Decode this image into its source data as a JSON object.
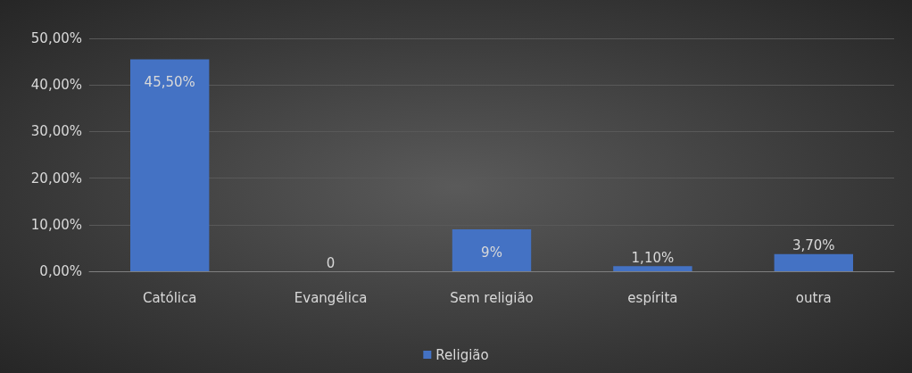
{
  "chart_data": {
    "type": "bar",
    "categories": [
      "Católica",
      "Evangélica",
      "Sem religião",
      "espírita",
      "outra"
    ],
    "series": [
      {
        "name": "Religião",
        "color": "#4472c4",
        "values": [
          45.5,
          0,
          9,
          1.1,
          3.7
        ],
        "value_labels": [
          "45,50%",
          "0",
          "9%",
          "1,10%",
          "3,70%"
        ]
      }
    ],
    "ylim": [
      0,
      50
    ],
    "yticks": [
      {
        "value": 0,
        "label": "0,00%"
      },
      {
        "value": 10,
        "label": "10,00%"
      },
      {
        "value": 20,
        "label": "20,00%"
      },
      {
        "value": 30,
        "label": "30,00%"
      },
      {
        "value": 40,
        "label": "40,00%"
      },
      {
        "value": 50,
        "label": "50,00%"
      }
    ],
    "grid": "y",
    "legend": "bottom"
  }
}
